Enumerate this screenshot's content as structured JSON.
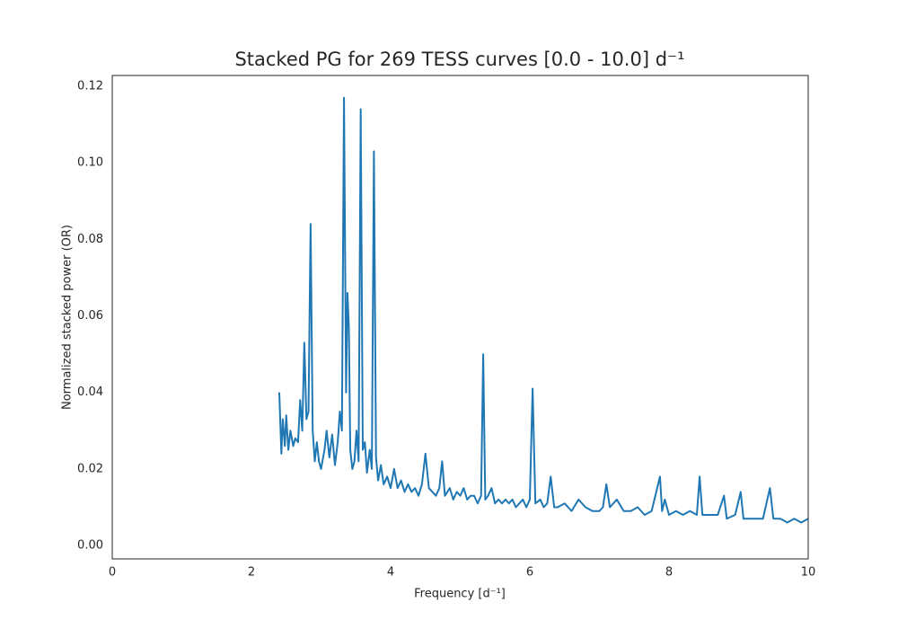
{
  "chart_data": {
    "type": "line",
    "title": "Stacked PG for 269 TESS curves [0.0 - 10.0] d⁻¹",
    "xlabel": "Frequency [d⁻¹]",
    "ylabel": "Normalized stacked power (OR)",
    "color": "#1f77b4",
    "grid": false,
    "xlim": [
      0,
      10
    ],
    "ylim": [
      -0.0035,
      0.1228
    ],
    "xticks": [
      0,
      2,
      4,
      6,
      8,
      10
    ],
    "yticks": [
      {
        "value": 0,
        "label": "0.00"
      },
      0.02,
      0.04,
      0.06,
      0.08,
      {
        "value": 0.1,
        "label": "0.10"
      },
      0.12
    ],
    "x": [
      2.4,
      2.43,
      2.45,
      2.48,
      2.5,
      2.53,
      2.56,
      2.6,
      2.63,
      2.67,
      2.7,
      2.73,
      2.76,
      2.79,
      2.82,
      2.85,
      2.88,
      2.91,
      2.94,
      2.97,
      3.0,
      3.05,
      3.08,
      3.12,
      3.16,
      3.2,
      3.24,
      3.27,
      3.3,
      3.33,
      3.36,
      3.38,
      3.4,
      3.42,
      3.45,
      3.48,
      3.51,
      3.54,
      3.57,
      3.6,
      3.63,
      3.66,
      3.7,
      3.73,
      3.76,
      3.79,
      3.82,
      3.86,
      3.9,
      3.95,
      4.0,
      4.05,
      4.1,
      4.15,
      4.2,
      4.25,
      4.3,
      4.35,
      4.4,
      4.45,
      4.5,
      4.55,
      4.6,
      4.65,
      4.7,
      4.74,
      4.78,
      4.85,
      4.9,
      4.95,
      5.0,
      5.05,
      5.1,
      5.15,
      5.2,
      5.25,
      5.3,
      5.33,
      5.36,
      5.4,
      5.45,
      5.5,
      5.55,
      5.6,
      5.65,
      5.7,
      5.75,
      5.8,
      5.85,
      5.9,
      5.95,
      6.0,
      6.04,
      6.08,
      6.15,
      6.2,
      6.25,
      6.3,
      6.35,
      6.4,
      6.5,
      6.6,
      6.7,
      6.8,
      6.9,
      7.0,
      7.05,
      7.1,
      7.15,
      7.25,
      7.35,
      7.45,
      7.55,
      7.65,
      7.75,
      7.87,
      7.9,
      7.94,
      8.0,
      8.1,
      8.2,
      8.3,
      8.4,
      8.44,
      8.48,
      8.6,
      8.7,
      8.79,
      8.83,
      8.95,
      9.03,
      9.07,
      9.2,
      9.35,
      9.45,
      9.5,
      9.6,
      9.7,
      9.8,
      9.9,
      10.0
    ],
    "values": [
      0.04,
      0.024,
      0.033,
      0.026,
      0.034,
      0.025,
      0.03,
      0.026,
      0.028,
      0.027,
      0.038,
      0.03,
      0.053,
      0.033,
      0.035,
      0.084,
      0.03,
      0.022,
      0.027,
      0.022,
      0.02,
      0.025,
      0.03,
      0.023,
      0.029,
      0.021,
      0.027,
      0.035,
      0.03,
      0.117,
      0.04,
      0.066,
      0.057,
      0.025,
      0.02,
      0.022,
      0.03,
      0.022,
      0.114,
      0.025,
      0.027,
      0.019,
      0.025,
      0.02,
      0.103,
      0.023,
      0.017,
      0.021,
      0.016,
      0.018,
      0.015,
      0.02,
      0.015,
      0.017,
      0.014,
      0.016,
      0.014,
      0.015,
      0.013,
      0.016,
      0.024,
      0.015,
      0.014,
      0.013,
      0.015,
      0.022,
      0.013,
      0.015,
      0.012,
      0.014,
      0.013,
      0.015,
      0.012,
      0.013,
      0.013,
      0.011,
      0.013,
      0.05,
      0.012,
      0.013,
      0.015,
      0.011,
      0.012,
      0.011,
      0.012,
      0.011,
      0.012,
      0.01,
      0.011,
      0.012,
      0.01,
      0.012,
      0.041,
      0.011,
      0.012,
      0.01,
      0.011,
      0.018,
      0.01,
      0.01,
      0.011,
      0.009,
      0.012,
      0.01,
      0.009,
      0.009,
      0.01,
      0.016,
      0.01,
      0.012,
      0.009,
      0.009,
      0.01,
      0.008,
      0.009,
      0.018,
      0.009,
      0.012,
      0.008,
      0.009,
      0.008,
      0.009,
      0.008,
      0.018,
      0.008,
      0.008,
      0.008,
      0.013,
      0.007,
      0.008,
      0.014,
      0.007,
      0.007,
      0.007,
      0.015,
      0.007,
      0.007,
      0.006,
      0.007,
      0.006,
      0.007
    ]
  }
}
